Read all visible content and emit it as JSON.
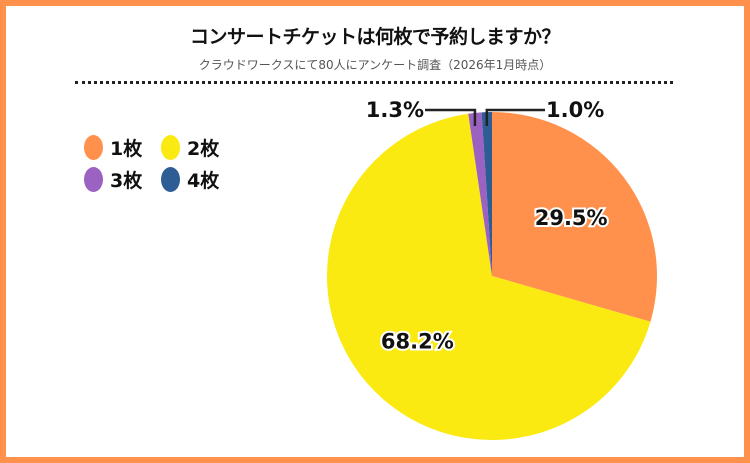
{
  "chart_data": {
    "type": "pie",
    "title": "コンサートチケットは何枚で予約しますか？",
    "subtitle": "クラウドワークスにて80人にアンケート調査（2026年1月時点）",
    "categories": [
      "1枚",
      "2枚",
      "3枚",
      "4枚"
    ],
    "values": [
      29.5,
      68.2,
      1.3,
      1.0
    ],
    "data_labels": [
      "29.5%",
      "68.2%",
      "1.3%",
      "1.0%"
    ],
    "colors": [
      "#FF914D",
      "#FBEA12",
      "#9B62C1",
      "#2E5C94"
    ],
    "start_angle": "12 o'clock",
    "direction": "clockwise",
    "legend_placement": "top-left"
  }
}
